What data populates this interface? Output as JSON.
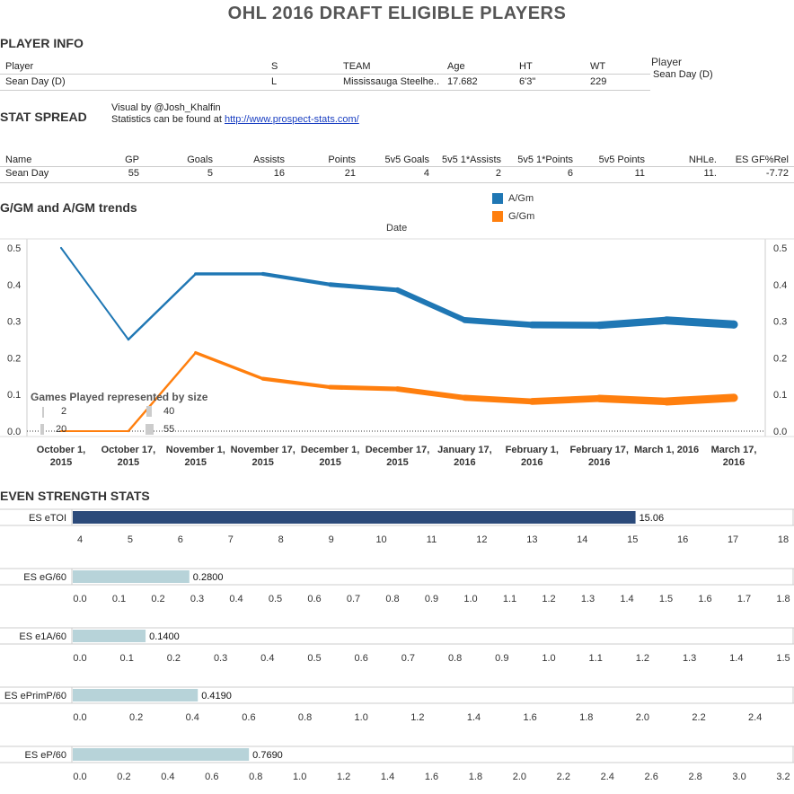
{
  "title": "OHL 2016 DRAFT ELIGIBLE PLAYERS",
  "player_info": {
    "heading": "PLAYER INFO",
    "headers": [
      "Player",
      "S",
      "TEAM",
      "Age",
      "HT",
      "WT"
    ],
    "row": [
      "Sean Day (D)",
      "L",
      "Mississauga Steelhe..",
      "17.682",
      "6'3\"",
      "229"
    ],
    "side_label": "Player",
    "side_value": "Sean Day (D)"
  },
  "stat_spread": {
    "heading": "STAT SPREAD",
    "credit_line1": "Visual by @Josh_Khalfin",
    "credit_line2_prefix": "Statistics can be found at ",
    "credit_link": "http://www.prospect-stats.com/",
    "headers": [
      "Name",
      "GP",
      "Goals",
      "Assists",
      "Points",
      "5v5 Goals",
      "5v5 1*Assists",
      "5v5 1*Points",
      "5v5 Points",
      "NHLe.",
      "ES GF%Rel"
    ],
    "row": [
      "Sean Day",
      "55",
      "5",
      "16",
      "21",
      "4",
      "2",
      "6",
      "11",
      "11.",
      "-7.72"
    ]
  },
  "trend": {
    "heading": "G/GM and A/GM trends",
    "legend": [
      {
        "label": "A/Gm",
        "color": "#1f77b4"
      },
      {
        "label": "G/Gm",
        "color": "#ff7f0e"
      }
    ],
    "size_legend_title": "Games Played represented by size",
    "size_legend": [
      "2",
      "40",
      "20",
      "55"
    ]
  },
  "even_strength": {
    "heading": "EVEN STRENGTH STATS"
  },
  "chart_data": [
    {
      "type": "line",
      "title": "",
      "xlabel": "Date",
      "ylabel": "",
      "x": [
        "October 1, 2015",
        "October 17, 2015",
        "November 1, 2015",
        "November 17, 2015",
        "December 1, 2015",
        "December 17, 2015",
        "January 17, 2016",
        "February 1, 2016",
        "February 17, 2016",
        "March 1, 2016",
        "March 17, 2016"
      ],
      "x_ticks": [
        [
          "October 1,",
          "2015"
        ],
        [
          "October 17,",
          "2015"
        ],
        [
          "November 1,",
          "2015"
        ],
        [
          "November 17,",
          "2015"
        ],
        [
          "December 1,",
          "2015"
        ],
        [
          "December 17,",
          "2015"
        ],
        [
          "January 17,",
          "2016"
        ],
        [
          "February 1,",
          "2016"
        ],
        [
          "February 17,",
          "2016"
        ],
        [
          "March 1, 2016",
          ""
        ],
        [
          "March 17,",
          "2016"
        ]
      ],
      "ylim": [
        0,
        0.5
      ],
      "y_ticks": [
        "0.0",
        "0.1",
        "0.2",
        "0.3",
        "0.4",
        "0.5"
      ],
      "series": [
        {
          "name": "A/Gm",
          "color": "#1f77b4",
          "values": [
            0.5,
            0.25,
            0.429,
            0.429,
            0.4,
            0.385,
            0.303,
            0.29,
            0.289,
            0.302,
            0.291
          ]
        },
        {
          "name": "G/Gm",
          "color": "#ff7f0e",
          "values": [
            0.0,
            0.0,
            0.214,
            0.143,
            0.12,
            0.115,
            0.091,
            0.081,
            0.089,
            0.081,
            0.091
          ]
        }
      ],
      "games_played": [
        2,
        4,
        7,
        14,
        20,
        26,
        33,
        38,
        45,
        50,
        55
      ]
    },
    {
      "type": "bar",
      "categories": [
        "ES eTOI"
      ],
      "values": [
        15.06
      ],
      "value_labels": [
        "15.06"
      ],
      "xlim": [
        4,
        18
      ],
      "ticks": [
        "4",
        "5",
        "6",
        "7",
        "8",
        "9",
        "10",
        "11",
        "12",
        "13",
        "14",
        "15",
        "16",
        "17",
        "18"
      ],
      "tick_values": [
        4,
        5,
        6,
        7,
        8,
        9,
        10,
        11,
        12,
        13,
        14,
        15,
        16,
        17,
        18
      ],
      "color": "#2b4a7a"
    },
    {
      "type": "bar",
      "categories": [
        "ES eG/60"
      ],
      "values": [
        0.28
      ],
      "value_labels": [
        "0.2800"
      ],
      "xlim": [
        0,
        1.8
      ],
      "ticks": [
        "0.0",
        "0.1",
        "0.2",
        "0.3",
        "0.4",
        "0.5",
        "0.6",
        "0.7",
        "0.8",
        "0.9",
        "1.0",
        "1.1",
        "1.2",
        "1.3",
        "1.4",
        "1.5",
        "1.6",
        "1.7",
        "1.8"
      ],
      "tick_values": [
        0,
        0.1,
        0.2,
        0.3,
        0.4,
        0.5,
        0.6,
        0.7,
        0.8,
        0.9,
        1.0,
        1.1,
        1.2,
        1.3,
        1.4,
        1.5,
        1.6,
        1.7,
        1.8
      ],
      "color": "#b7d3d9"
    },
    {
      "type": "bar",
      "categories": [
        "ES e1A/60"
      ],
      "values": [
        0.14
      ],
      "value_labels": [
        "0.1400"
      ],
      "xlim": [
        0,
        1.5
      ],
      "ticks": [
        "0.0",
        "0.1",
        "0.2",
        "0.3",
        "0.4",
        "0.5",
        "0.6",
        "0.7",
        "0.8",
        "0.9",
        "1.0",
        "1.1",
        "1.2",
        "1.3",
        "1.4",
        "1.5"
      ],
      "tick_values": [
        0,
        0.1,
        0.2,
        0.3,
        0.4,
        0.5,
        0.6,
        0.7,
        0.8,
        0.9,
        1.0,
        1.1,
        1.2,
        1.3,
        1.4,
        1.5
      ],
      "color": "#b7d3d9"
    },
    {
      "type": "bar",
      "categories": [
        "ES ePrimP/60"
      ],
      "values": [
        0.419
      ],
      "value_labels": [
        "0.4190"
      ],
      "xlim": [
        0,
        2.5
      ],
      "ticks": [
        "0.0",
        "0.2",
        "0.4",
        "0.6",
        "0.8",
        "1.0",
        "1.2",
        "1.4",
        "1.6",
        "1.8",
        "2.0",
        "2.2",
        "2.4"
      ],
      "tick_values": [
        0,
        0.2,
        0.4,
        0.6,
        0.8,
        1.0,
        1.2,
        1.4,
        1.6,
        1.8,
        2.0,
        2.2,
        2.4
      ],
      "color": "#b7d3d9"
    },
    {
      "type": "bar",
      "categories": [
        "ES eP/60"
      ],
      "values": [
        0.769
      ],
      "value_labels": [
        "0.7690"
      ],
      "xlim": [
        0,
        3.2
      ],
      "ticks": [
        "0.0",
        "0.2",
        "0.4",
        "0.6",
        "0.8",
        "1.0",
        "1.2",
        "1.4",
        "1.6",
        "1.8",
        "2.0",
        "2.2",
        "2.4",
        "2.6",
        "2.8",
        "3.0",
        "3.2"
      ],
      "tick_values": [
        0,
        0.2,
        0.4,
        0.6,
        0.8,
        1.0,
        1.2,
        1.4,
        1.6,
        1.8,
        2.0,
        2.2,
        2.4,
        2.6,
        2.8,
        3.0,
        3.2
      ],
      "color": "#b7d3d9"
    }
  ]
}
